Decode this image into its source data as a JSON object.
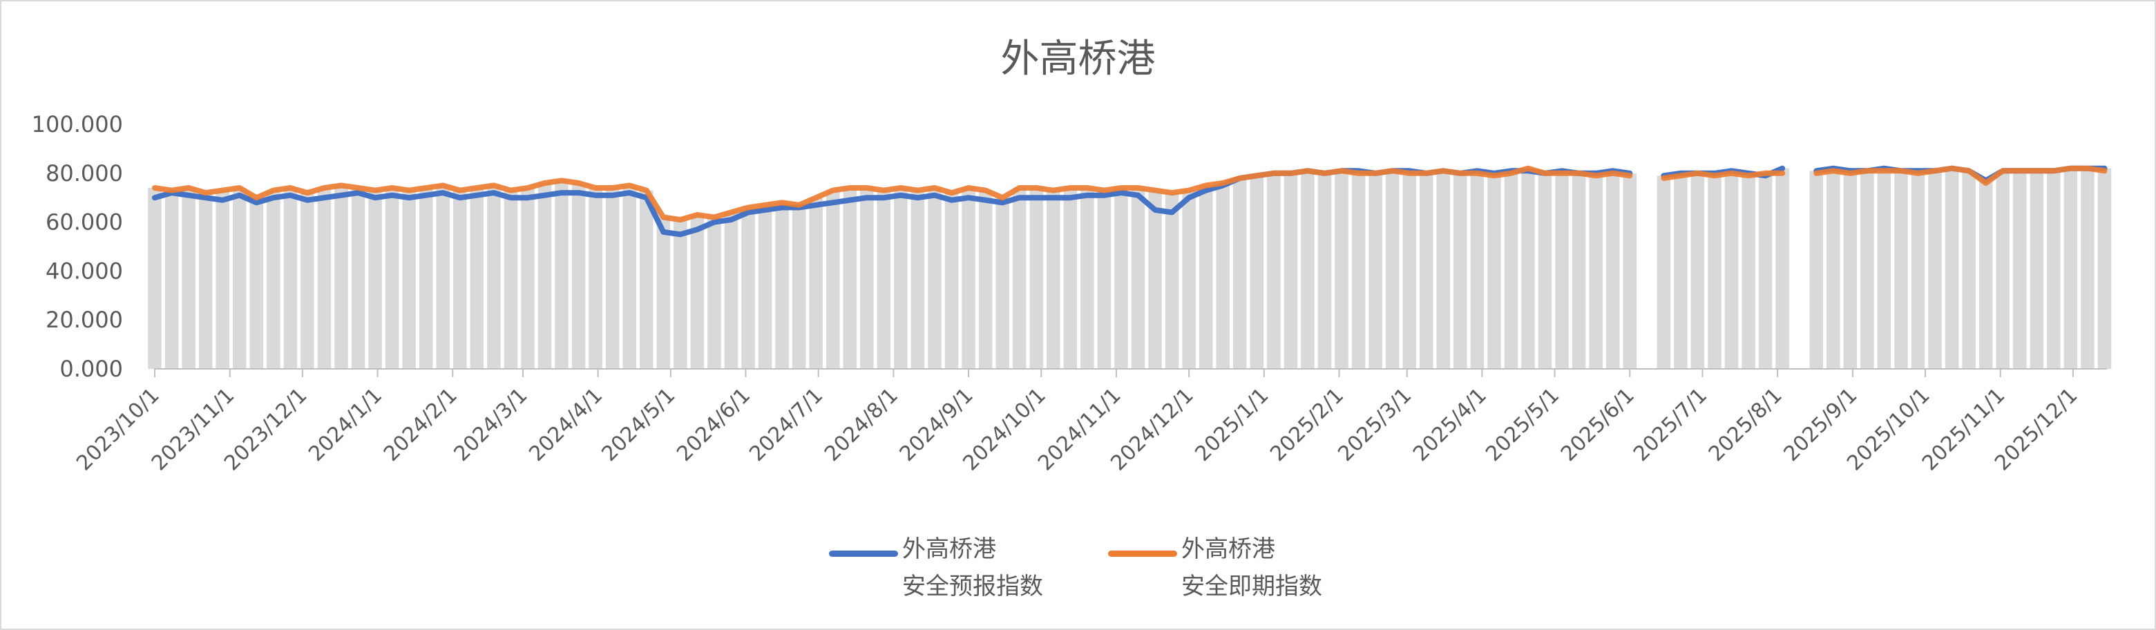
{
  "chart_data": {
    "type": "line",
    "title": "外高桥港",
    "xlabel": "",
    "ylabel": "",
    "ylim": [
      0,
      100
    ],
    "y_ticks": [
      "0.000",
      "20.000",
      "40.000",
      "60.000",
      "80.000",
      "100.000"
    ],
    "x_range": [
      "2023/10/1",
      "2025/12/15"
    ],
    "x_tick_labels": [
      "2023/10/1",
      "2023/11/1",
      "2023/12/1",
      "2024/1/1",
      "2024/2/1",
      "2024/3/1",
      "2024/4/1",
      "2024/5/1",
      "2024/6/1",
      "2024/7/1",
      "2024/8/1",
      "2024/9/1",
      "2024/10/1",
      "2024/11/1",
      "2024/12/1",
      "2025/1/1",
      "2025/2/1",
      "2025/3/1",
      "2025/4/1",
      "2025/5/1",
      "2025/6/1",
      "2025/7/1",
      "2025/8/1",
      "2025/9/1",
      "2025/10/1",
      "2025/11/1",
      "2025/12/1"
    ],
    "grid": false,
    "legend_position": "bottom",
    "background_columns_color": "#d9d9d9",
    "x": [
      "2023/10/1",
      "2023/10/8",
      "2023/10/15",
      "2023/10/22",
      "2023/10/29",
      "2023/11/5",
      "2023/11/12",
      "2023/11/19",
      "2023/11/26",
      "2023/12/3",
      "2023/12/10",
      "2023/12/17",
      "2023/12/24",
      "2023/12/31",
      "2024/1/7",
      "2024/1/14",
      "2024/1/21",
      "2024/1/28",
      "2024/2/4",
      "2024/2/11",
      "2024/2/18",
      "2024/2/25",
      "2024/3/3",
      "2024/3/10",
      "2024/3/17",
      "2024/3/24",
      "2024/3/31",
      "2024/4/7",
      "2024/4/14",
      "2024/4/21",
      "2024/4/28",
      "2024/5/5",
      "2024/5/12",
      "2024/5/19",
      "2024/5/26",
      "2024/6/2",
      "2024/6/9",
      "2024/6/16",
      "2024/6/23",
      "2024/6/30",
      "2024/7/7",
      "2024/7/14",
      "2024/7/21",
      "2024/7/28",
      "2024/8/4",
      "2024/8/11",
      "2024/8/18",
      "2024/8/25",
      "2024/9/1",
      "2024/9/8",
      "2024/9/15",
      "2024/9/22",
      "2024/9/29",
      "2024/10/6",
      "2024/10/13",
      "2024/10/20",
      "2024/10/27",
      "2024/11/3",
      "2024/11/10",
      "2024/11/17",
      "2024/11/24",
      "2024/12/1",
      "2024/12/8",
      "2024/12/15",
      "2024/12/22",
      "2024/12/29",
      "2025/1/5",
      "2025/1/12",
      "2025/1/19",
      "2025/1/26",
      "2025/2/2",
      "2025/2/9",
      "2025/2/16",
      "2025/2/23",
      "2025/3/2",
      "2025/3/9",
      "2025/3/16",
      "2025/3/23",
      "2025/3/30",
      "2025/4/6",
      "2025/4/13",
      "2025/4/20",
      "2025/4/27",
      "2025/5/4",
      "2025/5/11",
      "2025/5/18",
      "2025/5/25",
      "2025/6/1",
      "2025/6/8",
      "2025/6/15",
      "2025/6/22",
      "2025/6/29",
      "2025/7/6",
      "2025/7/13",
      "2025/7/20",
      "2025/7/27",
      "2025/8/3",
      "2025/8/10",
      "2025/8/17",
      "2025/8/24",
      "2025/8/31",
      "2025/9/7",
      "2025/9/14",
      "2025/9/21",
      "2025/9/28",
      "2025/10/5",
      "2025/10/12",
      "2025/10/19",
      "2025/10/26",
      "2025/11/2",
      "2025/11/9",
      "2025/11/16",
      "2025/11/23",
      "2025/11/30",
      "2025/12/7",
      "2025/12/14"
    ],
    "series": [
      {
        "name": "外高桥港\n安全预报指数",
        "name_line1": "外高桥港",
        "name_line2": "安全预报指数",
        "color": "#4472c4",
        "values": [
          70,
          72,
          71,
          70,
          69,
          71,
          68,
          70,
          71,
          69,
          70,
          71,
          72,
          70,
          71,
          70,
          71,
          72,
          70,
          71,
          72,
          70,
          70,
          71,
          72,
          72,
          71,
          71,
          72,
          70,
          56,
          55,
          57,
          60,
          61,
          64,
          65,
          66,
          66,
          67,
          68,
          69,
          70,
          70,
          71,
          70,
          71,
          69,
          70,
          69,
          68,
          70,
          70,
          70,
          70,
          71,
          71,
          72,
          71,
          65,
          64,
          70,
          73,
          75,
          78,
          79,
          80,
          80,
          81,
          80,
          81,
          81,
          80,
          81,
          81,
          80,
          81,
          80,
          81,
          80,
          81,
          81,
          80,
          81,
          80,
          80,
          81,
          80,
          null,
          79,
          80,
          80,
          80,
          81,
          80,
          79,
          82,
          null,
          81,
          82,
          81,
          81,
          82,
          81,
          81,
          81,
          82,
          81,
          77,
          81,
          81,
          81,
          81,
          82,
          82,
          82
        ]
      },
      {
        "name": "外高桥港\n安全即期指数",
        "name_line1": "外高桥港",
        "name_line2": "安全即期指数",
        "color": "#ed7d31",
        "values": [
          74,
          73,
          74,
          72,
          73,
          74,
          70,
          73,
          74,
          72,
          74,
          75,
          74,
          73,
          74,
          73,
          74,
          75,
          73,
          74,
          75,
          73,
          74,
          76,
          77,
          76,
          74,
          74,
          75,
          73,
          62,
          61,
          63,
          62,
          64,
          66,
          67,
          68,
          67,
          70,
          73,
          74,
          74,
          73,
          74,
          73,
          74,
          72,
          74,
          73,
          70,
          74,
          74,
          73,
          74,
          74,
          73,
          74,
          74,
          73,
          72,
          73,
          75,
          76,
          78,
          79,
          80,
          80,
          81,
          80,
          81,
          80,
          80,
          81,
          80,
          80,
          81,
          80,
          80,
          79,
          80,
          82,
          80,
          80,
          80,
          79,
          80,
          79,
          null,
          78,
          79,
          80,
          79,
          80,
          79,
          80,
          80,
          null,
          80,
          81,
          80,
          81,
          81,
          81,
          80,
          81,
          82,
          81,
          76,
          81,
          81,
          81,
          81,
          82,
          82,
          81
        ]
      }
    ]
  }
}
